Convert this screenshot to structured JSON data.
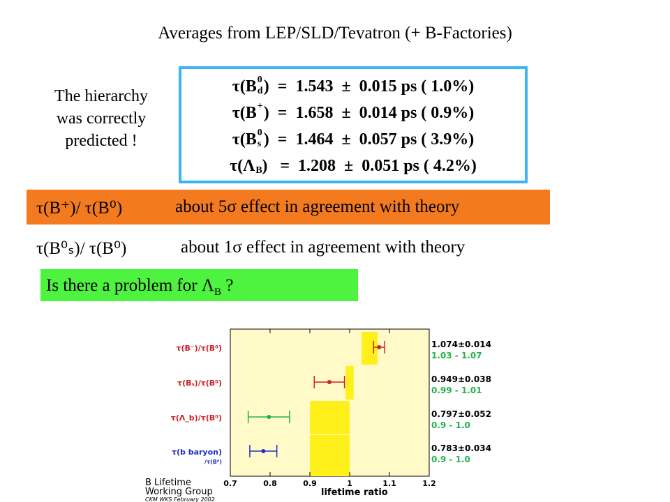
{
  "title": "Averages from LEP/SLD/Tevatron (+ B-Factories)",
  "hierarchy": {
    "line1": "The hierarchy",
    "line2": "was correctly",
    "line3": "predicted !"
  },
  "lifetimes": [
    {
      "tau": "τ(B",
      "sup": "0",
      "sub": "d",
      "close": ")",
      "value": "  =  1.543  ±  0.015 ps ( 1.0%)"
    },
    {
      "tau": "τ(B",
      "sup": "+",
      "sub": "",
      "close": ")",
      "value": "  =  1.658  ±  0.014 ps ( 0.9%)"
    },
    {
      "tau": "τ(B",
      "sup": "0",
      "sub": "s",
      "close": ")",
      "value": "  =  1.464  ±  0.057 ps ( 3.9%)"
    },
    {
      "tau": "τ(Λ",
      "sup": "",
      "sub": "B",
      "close": ")",
      "value": "   =  1.208  ±  0.051 ps ( 4.2%)"
    }
  ],
  "ratio_plus": {
    "lhs": "τ(B⁺)/ τ(B⁰)",
    "rhs": "about 5σ effect in agreement with theory"
  },
  "ratio_s": {
    "lhs": "τ(B⁰ₛ)/ τ(B⁰)",
    "rhs": "about 1σ effect in agreement with theory"
  },
  "question": {
    "text": "Is there a problem for Λ",
    "sub": "B",
    "end": " ?"
  },
  "figure": {
    "rows": [
      {
        "label": "τ(B⁻)/τ(B⁰)",
        "label_color": "#d0202a",
        "value": "1.074±0.014",
        "theory": "1.03 - 1.07",
        "center": 1.074,
        "err": 0.014,
        "color": "#d0202a",
        "theory_lo": 1.03,
        "theory_hi": 1.07
      },
      {
        "label": "τ(Bₛ)/τ(B⁰)",
        "label_color": "#d0202a",
        "value": "0.949±0.038",
        "theory": "0.99 - 1.01",
        "center": 0.949,
        "err": 0.038,
        "color": "#d0202a",
        "theory_lo": 0.99,
        "theory_hi": 1.01
      },
      {
        "label": "τ(Λ_b)/τ(B⁰)",
        "label_color": "#d0202a",
        "value": "0.797±0.052",
        "theory": "0.9 - 1.0",
        "center": 0.797,
        "err": 0.052,
        "color": "#22b24a",
        "theory_lo": 0.9,
        "theory_hi": 1.0
      },
      {
        "label": "τ(b baryon)",
        "label_color": "#2030c0",
        "sublabel": "/τ(B⁰)",
        "value": "0.783±0.034",
        "theory": "0.9 - 1.0",
        "center": 0.783,
        "err": 0.034,
        "color": "#2030c0",
        "theory_lo": 0.9,
        "theory_hi": 1.0
      }
    ],
    "xticks": [
      "0.7",
      "0.8",
      "0.9",
      "1",
      "1.1",
      "1.2"
    ],
    "xlabel": "lifetime ratio",
    "group_line1": "B Lifetime",
    "group_line2": "Working Group",
    "group_line3": "CKM WKS February 2002",
    "xlim": [
      0.7,
      1.2
    ]
  }
}
